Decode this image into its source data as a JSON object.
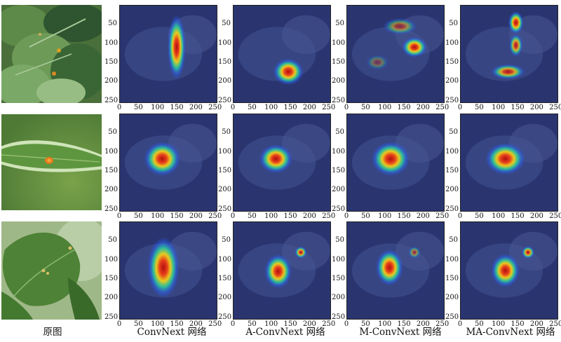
{
  "captions": {
    "original": "原图",
    "convnext": "ConvNext 网络",
    "a_convnext": "A-ConvNext 网络",
    "m_convnext": "M-ConvNext 网络",
    "ma_convnext": "MA-ConvNext 网络"
  },
  "axes": {
    "x_ticks": [
      "0",
      "50",
      "100",
      "150",
      "200",
      "250"
    ],
    "y_ticks": [
      "50",
      "100",
      "150",
      "200",
      "250"
    ]
  },
  "colors": {
    "heat_hot": "#b01010",
    "heat_warm": "#f2d21a",
    "heat_mid": "#28d8a0",
    "heat_cool": "#2a60ff",
    "background_tint": "#2a3570",
    "leaf_green": "#3c7a2a"
  },
  "heatmaps": [
    [
      [
        {
          "x": 150,
          "y": 110,
          "rx": 24,
          "ry": 85,
          "r": 1.0
        }
      ],
      [
        {
          "x": 145,
          "y": 175,
          "rx": 40,
          "ry": 35,
          "r": 1.0
        }
      ],
      [
        {
          "x": 178,
          "y": 110,
          "rx": 33,
          "ry": 27,
          "r": 1.0
        },
        {
          "x": 140,
          "y": 55,
          "rx": 45,
          "ry": 22,
          "r": 0.55
        },
        {
          "x": 80,
          "y": 150,
          "rx": 30,
          "ry": 20,
          "r": 0.35
        }
      ],
      [
        {
          "x": 146,
          "y": 45,
          "rx": 20,
          "ry": 30,
          "r": 1.0
        },
        {
          "x": 146,
          "y": 105,
          "rx": 18,
          "ry": 30,
          "r": 0.85
        },
        {
          "x": 125,
          "y": 175,
          "rx": 45,
          "ry": 20,
          "r": 0.85
        }
      ]
    ],
    [
      [
        {
          "x": 112,
          "y": 118,
          "rx": 48,
          "ry": 45,
          "r": 1.0
        }
      ],
      [
        {
          "x": 112,
          "y": 118,
          "rx": 44,
          "ry": 38,
          "r": 1.0
        }
      ],
      [
        {
          "x": 115,
          "y": 118,
          "rx": 50,
          "ry": 45,
          "r": 1.0
        }
      ],
      [
        {
          "x": 118,
          "y": 118,
          "rx": 52,
          "ry": 42,
          "r": 1.0
        }
      ]
    ],
    [
      [
        {
          "x": 115,
          "y": 120,
          "rx": 42,
          "ry": 80,
          "r": 1.0
        }
      ],
      [
        {
          "x": 118,
          "y": 130,
          "rx": 36,
          "ry": 45,
          "r": 1.0
        },
        {
          "x": 178,
          "y": 80,
          "rx": 16,
          "ry": 16,
          "r": 0.9
        }
      ],
      [
        {
          "x": 112,
          "y": 120,
          "rx": 36,
          "ry": 48,
          "r": 1.0
        },
        {
          "x": 178,
          "y": 80,
          "rx": 16,
          "ry": 16,
          "r": 0.55
        }
      ],
      [
        {
          "x": 118,
          "y": 128,
          "rx": 38,
          "ry": 44,
          "r": 1.0
        },
        {
          "x": 178,
          "y": 80,
          "rx": 17,
          "ry": 17,
          "r": 0.9
        }
      ]
    ]
  ]
}
